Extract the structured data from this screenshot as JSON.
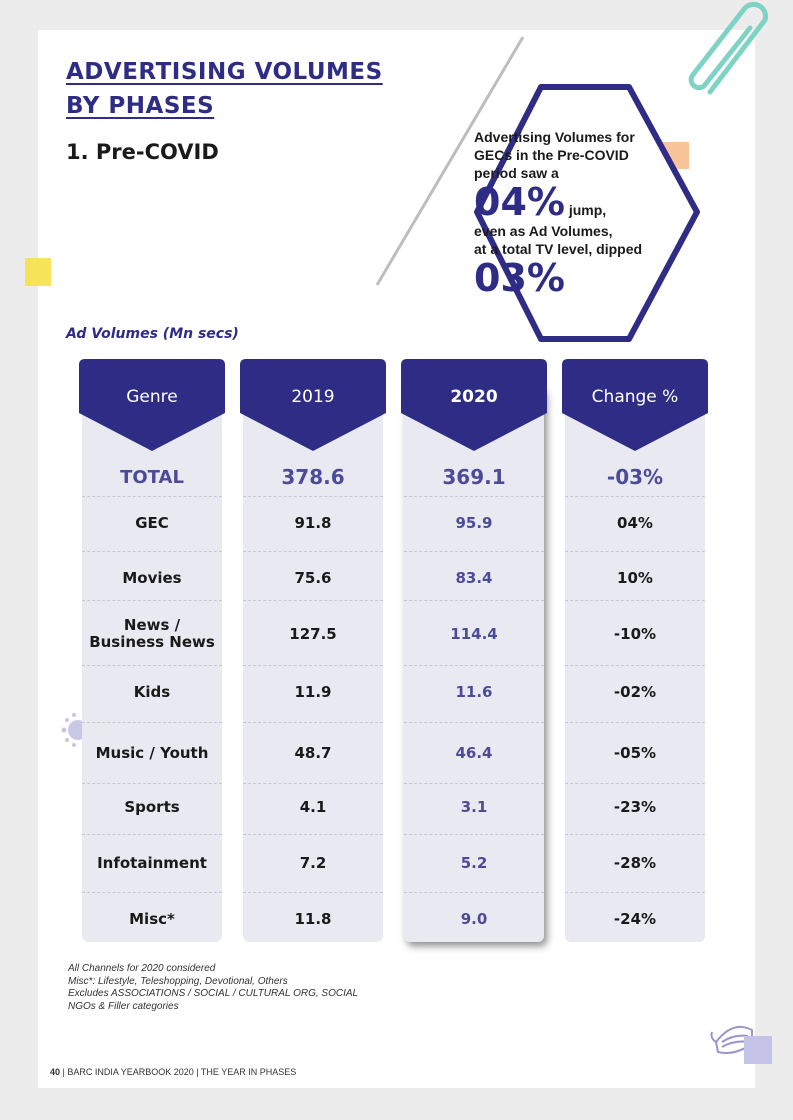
{
  "page": {
    "title_line1": "ADVERTISING VOLUMES",
    "title_line2": "BY PHASES",
    "subtitle": "1. Pre-COVID",
    "unit_label": "Ad Volumes (Mn secs)"
  },
  "callout": {
    "line1": "Advertising Volumes for",
    "line2": "GECs in the Pre-COVID",
    "line3": "period saw a",
    "big1": "04%",
    "big1_suffix": "jump,",
    "line4": "even as Ad Volumes,",
    "line5": "at a total TV level, dipped",
    "big2": "03%"
  },
  "table": {
    "headers": [
      "Genre",
      "2019",
      "2020",
      "Change %"
    ],
    "rows": [
      {
        "genre": "TOTAL",
        "v2019": "378.6",
        "v2020": "369.1",
        "change": "-03%"
      },
      {
        "genre": "GEC",
        "v2019": "91.8",
        "v2020": "95.9",
        "change": "04%"
      },
      {
        "genre": "Movies",
        "v2019": "75.6",
        "v2020": "83.4",
        "change": "10%"
      },
      {
        "genre": "News /",
        "genre2": "Business News",
        "v2019": "127.5",
        "v2020": "114.4",
        "change": "-10%"
      },
      {
        "genre": "Kids",
        "v2019": "11.9",
        "v2020": "11.6",
        "change": "-02%"
      },
      {
        "genre": "Music / Youth",
        "v2019": "48.7",
        "v2020": "46.4",
        "change": "-05%"
      },
      {
        "genre": "Sports",
        "v2019": "4.1",
        "v2020": "3.1",
        "change": "-23%"
      },
      {
        "genre": "Infotainment",
        "v2019": "7.2",
        "v2020": "5.2",
        "change": "-28%"
      },
      {
        "genre": "Misc*",
        "v2019": "11.8",
        "v2020": "9.0",
        "change": "-24%"
      }
    ]
  },
  "footnotes": [
    "All Channels for 2020 considered",
    "Misc*: Lifestyle, Teleshopping, Devotional, Others",
    "Excludes ASSOCIATIONS / SOCIAL / CULTURAL ORG, SOCIAL",
    "NGOs & Filler categories"
  ],
  "footer": {
    "page_number": "40",
    "text": "| BARC INDIA YEARBOOK 2020 | THE YEAR IN PHASES"
  },
  "colors": {
    "brand_navy": "#2e2c84",
    "accent_blue": "#4d4b98",
    "cell_bg": "#e9e9f2",
    "yellow": "#f7e35a",
    "peach": "#f9c49a",
    "teal": "#7fd3c4",
    "lavender": "#c4c2e6"
  }
}
